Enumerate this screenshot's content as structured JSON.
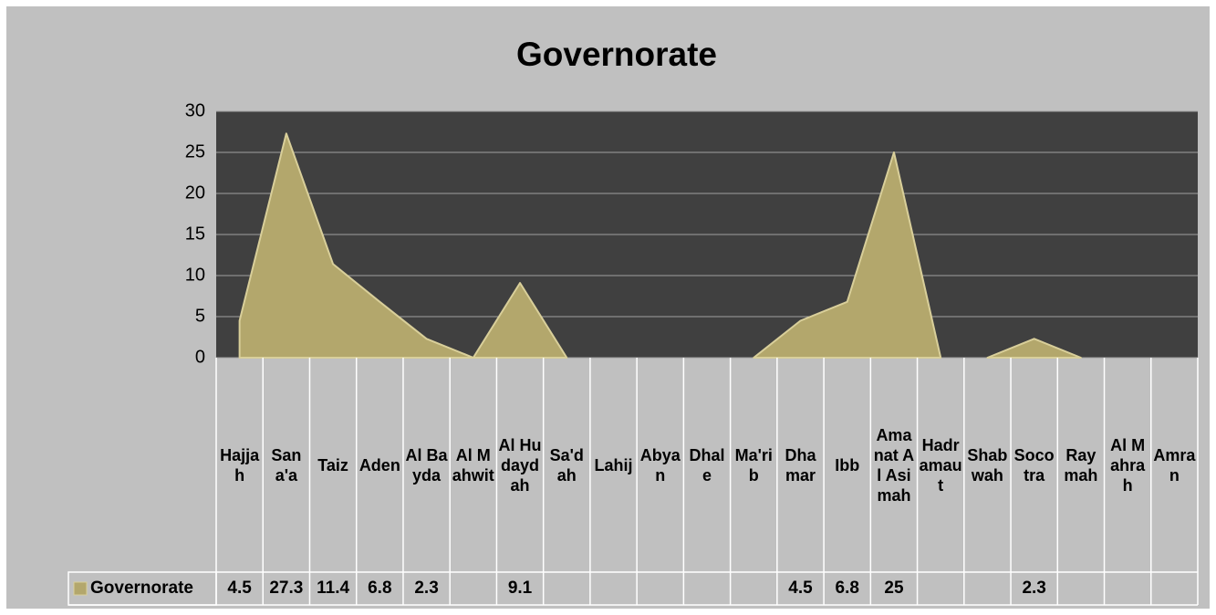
{
  "chart_data": {
    "type": "area",
    "title": "Governorate",
    "categories": [
      "Hajjah",
      "Sana'a",
      "Taiz",
      "Aden",
      "Al Bayda",
      "Al Mahwit",
      "Al Hudaydah",
      "Sa'dah",
      "Lahij",
      "Abyan",
      "Dhale",
      "Ma'rib",
      "Dhamar",
      "Ibb",
      "Amanat Al Asimah",
      "Hadramaut",
      "Shabwah",
      "Socotra",
      "Raymah",
      "Al Mahrah",
      "Amran"
    ],
    "series": [
      {
        "name": "Governorate",
        "color": "#b3a76c",
        "values": [
          4.5,
          27.3,
          11.4,
          6.8,
          2.3,
          null,
          9.1,
          null,
          null,
          null,
          null,
          null,
          4.5,
          6.8,
          25,
          null,
          null,
          2.3,
          null,
          null,
          null
        ]
      }
    ],
    "ylim": [
      0,
      30
    ],
    "yticks": [
      0,
      5,
      10,
      15,
      20,
      25,
      30
    ],
    "grid": true,
    "data_table": true
  }
}
